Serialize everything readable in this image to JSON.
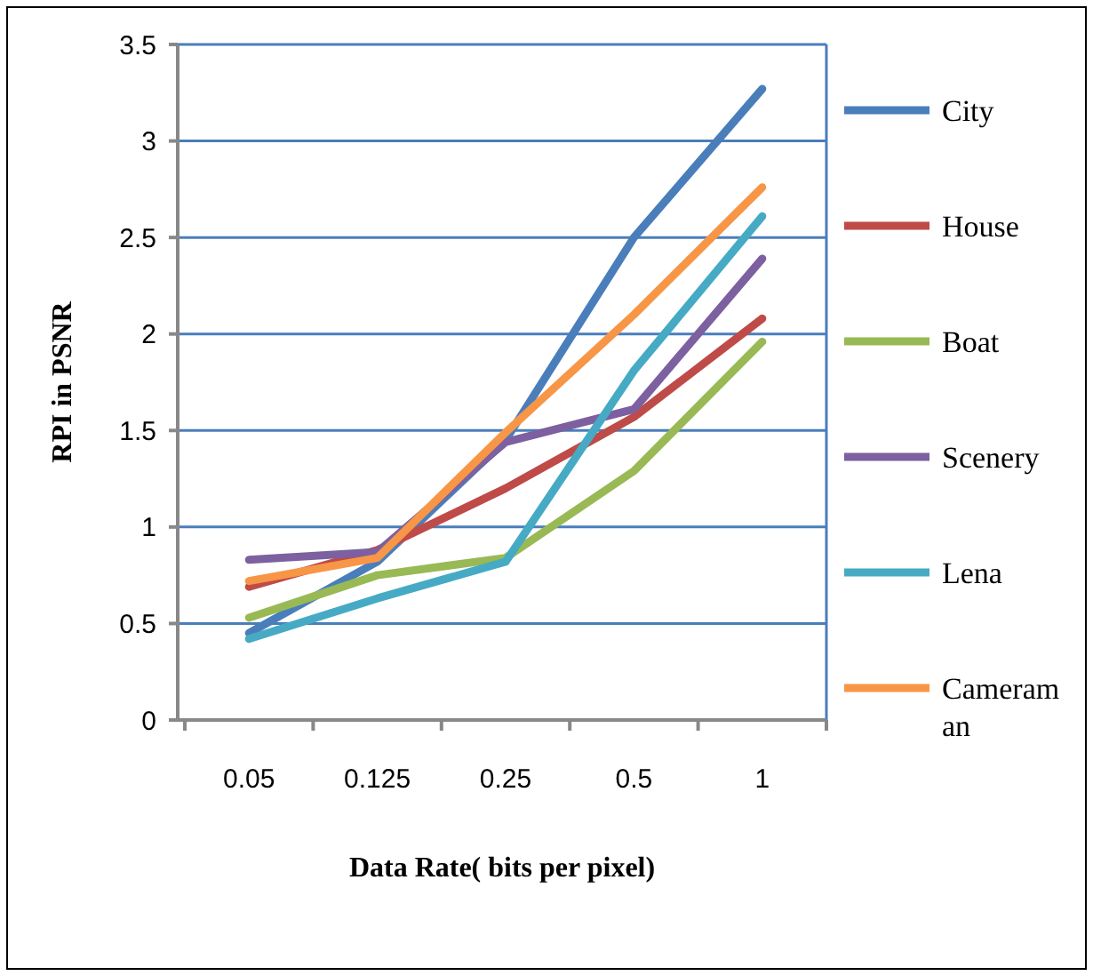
{
  "chart_data": {
    "type": "line",
    "xlabel": "Data Rate( bits per pixel)",
    "ylabel": "RPI in PSNR",
    "categories": [
      "0.05",
      "0.125",
      "0.25",
      "0.5",
      "1"
    ],
    "series": [
      {
        "name": "City",
        "color": "#4a7ebb",
        "values": [
          0.45,
          0.82,
          1.45,
          2.5,
          3.27
        ]
      },
      {
        "name": "House",
        "color": "#be4b48",
        "values": [
          0.69,
          0.88,
          1.2,
          1.57,
          2.08
        ]
      },
      {
        "name": "Boat",
        "color": "#98b954",
        "values": [
          0.53,
          0.75,
          0.84,
          1.29,
          1.96
        ]
      },
      {
        "name": "Scenery",
        "color": "#7d60a0",
        "values": [
          0.83,
          0.87,
          1.44,
          1.61,
          2.39
        ]
      },
      {
        "name": "Lena",
        "color": "#46aac5",
        "values": [
          0.42,
          0.63,
          0.82,
          1.81,
          2.61
        ]
      },
      {
        "name": "Cameraman",
        "color": "#f79646",
        "values": [
          0.72,
          0.84,
          1.49,
          2.1,
          2.76
        ]
      }
    ],
    "ylim": [
      0,
      3.5
    ],
    "yticks": [
      0,
      0.5,
      1,
      1.5,
      2,
      2.5,
      3,
      3.5
    ],
    "grid": "y",
    "legend": "right",
    "marker": "none",
    "line_style": "solid"
  }
}
